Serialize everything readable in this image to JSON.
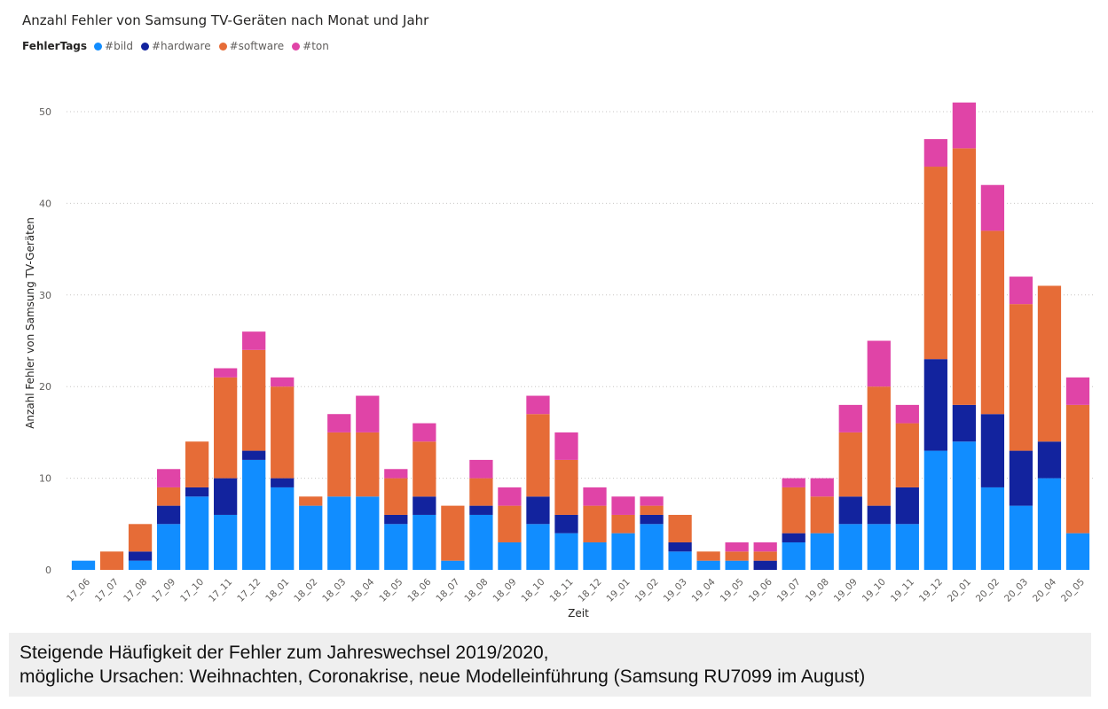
{
  "chart_data": {
    "type": "bar",
    "stacked": true,
    "title": "Anzahl Fehler von Samsung TV-Geräten nach Monat und Jahr",
    "xlabel": "Zeit",
    "ylabel": "Anzahl Fehler von Samsung TV-Geräten",
    "ylim": [
      0,
      55
    ],
    "yticks": [
      0,
      10,
      20,
      30,
      40,
      50
    ],
    "grid": true,
    "legend": {
      "title": "FehlerTags",
      "position": "top-left",
      "items": [
        {
          "name": "#bild",
          "color": "#118DFF"
        },
        {
          "name": "#hardware",
          "color": "#12239E"
        },
        {
          "name": "#software",
          "color": "#E66C37"
        },
        {
          "name": "#ton",
          "color": "#E044A7"
        }
      ]
    },
    "categories": [
      "17_06",
      "17_07",
      "17_08",
      "17_09",
      "17_10",
      "17_11",
      "17_12",
      "18_01",
      "18_02",
      "18_03",
      "18_04",
      "18_05",
      "18_06",
      "18_07",
      "18_08",
      "18_09",
      "18_10",
      "18_11",
      "18_12",
      "19_01",
      "19_02",
      "19_03",
      "19_04",
      "19_05",
      "19_06",
      "19_07",
      "19_08",
      "19_09",
      "19_10",
      "19_11",
      "19_12",
      "20_01",
      "20_02",
      "20_03",
      "20_04",
      "20_05"
    ],
    "series": [
      {
        "name": "#bild",
        "color": "#118DFF",
        "values": [
          1,
          0,
          1,
          5,
          8,
          6,
          12,
          9,
          7,
          8,
          8,
          5,
          6,
          1,
          6,
          3,
          5,
          4,
          3,
          4,
          5,
          2,
          1,
          1,
          0,
          3,
          4,
          5,
          5,
          5,
          13,
          14,
          9,
          7,
          10,
          4
        ]
      },
      {
        "name": "#hardware",
        "color": "#12239E",
        "values": [
          0,
          0,
          1,
          2,
          1,
          4,
          1,
          1,
          0,
          0,
          0,
          1,
          2,
          0,
          1,
          0,
          3,
          2,
          0,
          0,
          1,
          1,
          0,
          0,
          1,
          1,
          0,
          3,
          2,
          4,
          10,
          4,
          8,
          6,
          4,
          0
        ]
      },
      {
        "name": "#software",
        "color": "#E66C37",
        "values": [
          0,
          2,
          3,
          2,
          5,
          11,
          11,
          10,
          1,
          7,
          7,
          4,
          6,
          6,
          3,
          4,
          9,
          6,
          4,
          2,
          1,
          3,
          1,
          1,
          1,
          5,
          4,
          7,
          13,
          7,
          21,
          28,
          20,
          16,
          17,
          14
        ]
      },
      {
        "name": "#ton",
        "color": "#E044A7",
        "values": [
          0,
          0,
          0,
          2,
          0,
          1,
          2,
          1,
          0,
          2,
          4,
          1,
          2,
          0,
          2,
          2,
          2,
          3,
          2,
          2,
          1,
          0,
          0,
          1,
          1,
          1,
          2,
          3,
          5,
          2,
          3,
          5,
          5,
          3,
          0,
          3
        ]
      }
    ]
  },
  "caption": {
    "line1": "Steigende Häufigkeit der Fehler zum Jahreswechsel 2019/2020,",
    "line2": "mögliche Ursachen: Weihnachten, Coronakrise, neue Modelleinführung (Samsung RU7099 im August)"
  }
}
